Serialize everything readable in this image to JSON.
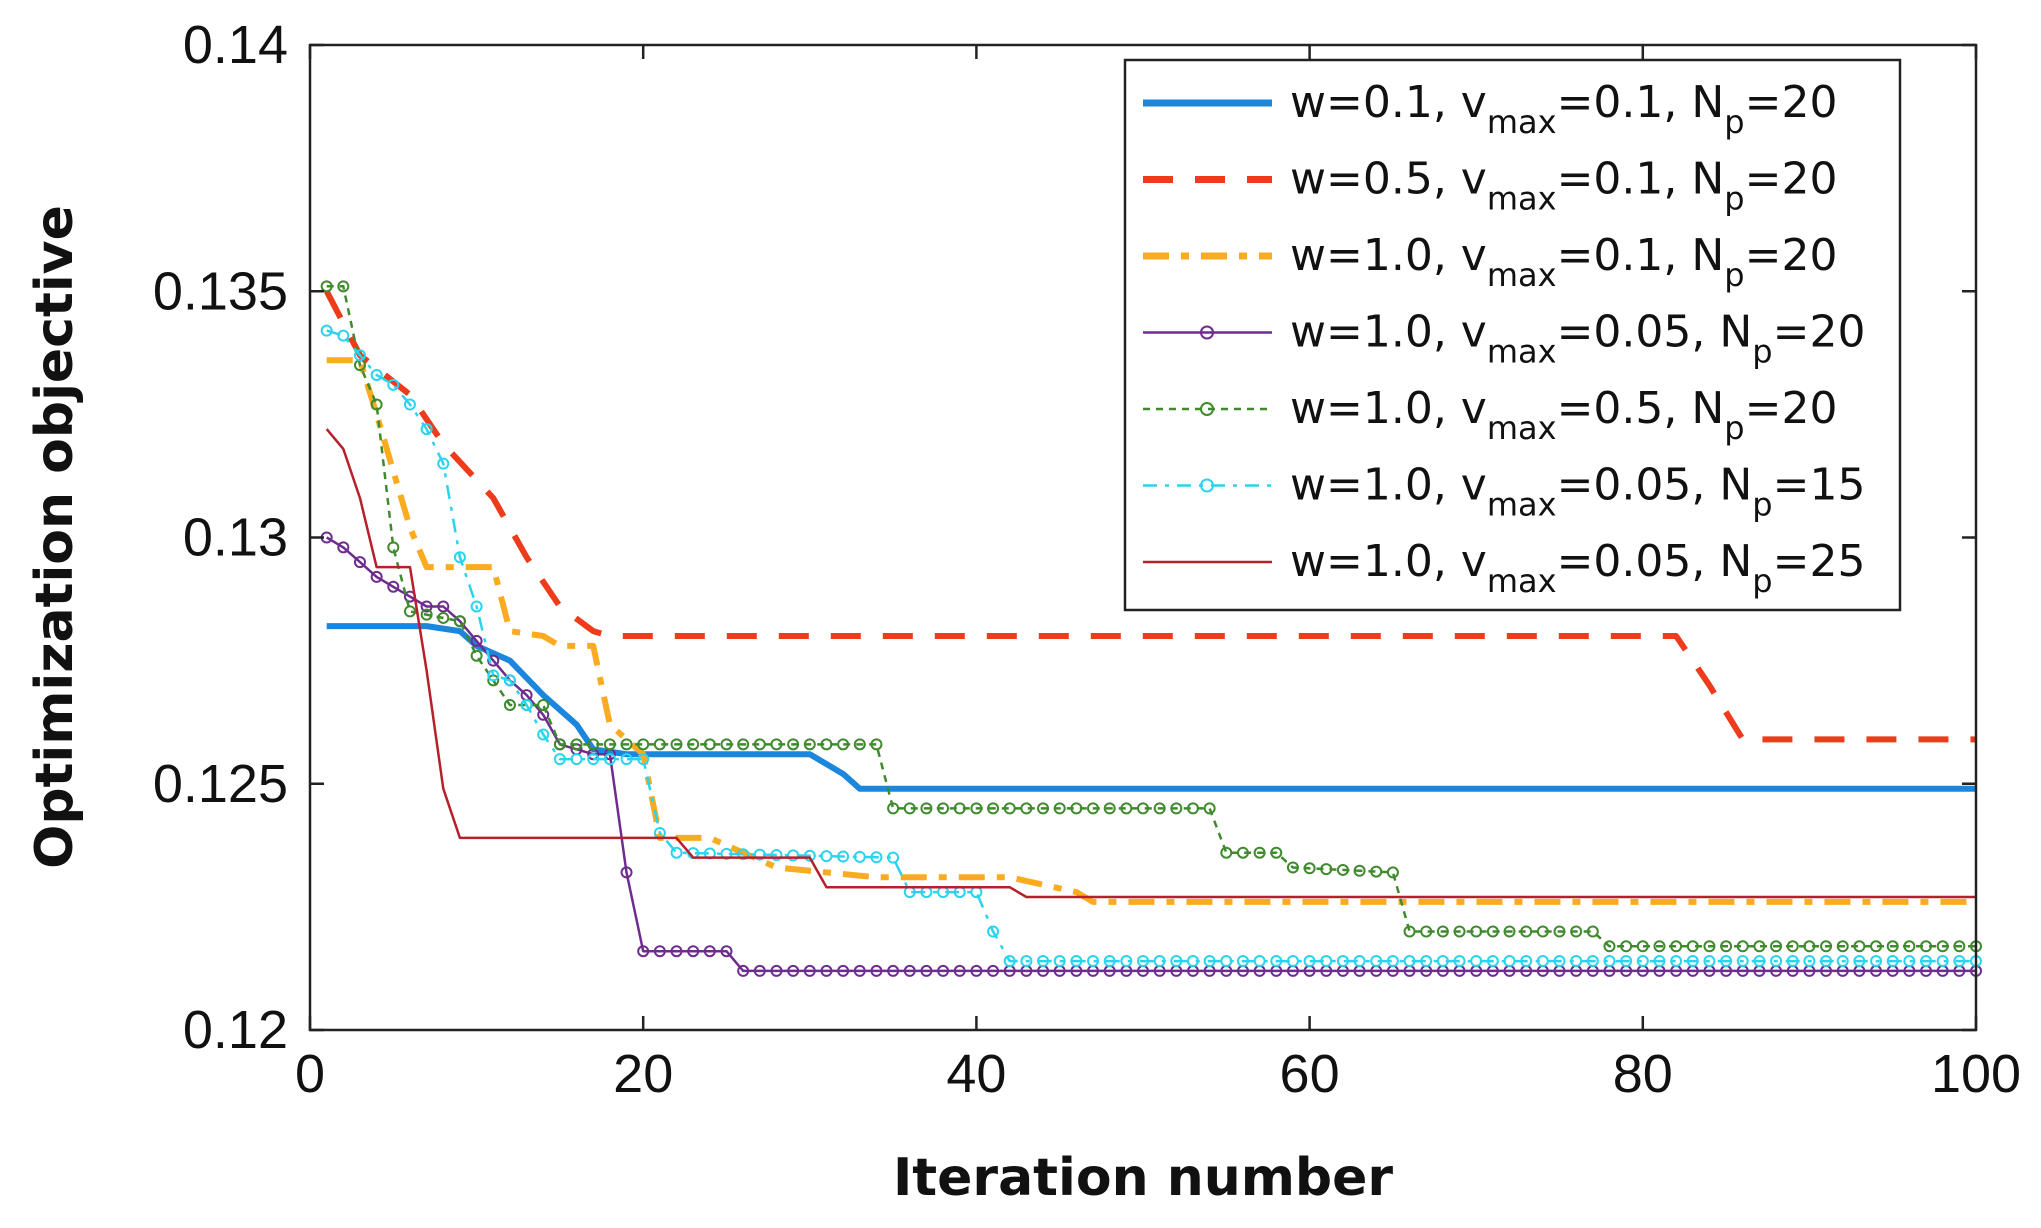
{
  "chart_data": {
    "type": "line",
    "title": "",
    "xlabel": "Iteration number",
    "ylabel": "Optimization objective",
    "xlim": [
      0,
      100
    ],
    "ylim": [
      0.12,
      0.14
    ],
    "xticks": [
      0,
      20,
      40,
      60,
      80,
      100
    ],
    "xtick_labels": [
      "0",
      "20",
      "40",
      "60",
      "80",
      "100"
    ],
    "yticks": [
      0.12,
      0.125,
      0.13,
      0.135,
      0.14
    ],
    "ytick_labels": [
      "0.12",
      "0.125",
      "0.13",
      "0.135",
      "0.14"
    ],
    "grid": false,
    "legend_position": "top-right",
    "series": [
      {
        "name": "w=0.1, v_max=0.1, N_p=20",
        "legend": {
          "pre": "w=0.1, v",
          "sub1": "max",
          "mid": "=0.1, N",
          "sub2": "p",
          "post": "=20"
        },
        "color": "#1a86dc",
        "style": "solid",
        "marker": "none",
        "width": "thick",
        "x": [
          1,
          7,
          9,
          10,
          12,
          14,
          16,
          17,
          19,
          20,
          30,
          32,
          33,
          100
        ],
        "y": [
          0.1282,
          0.1282,
          0.1281,
          0.1278,
          0.1275,
          0.1268,
          0.1262,
          0.1257,
          0.1256,
          0.1256,
          0.1256,
          0.1252,
          0.1249,
          0.1249
        ]
      },
      {
        "name": "w=0.5, v_max=0.1, N_p=20",
        "legend": {
          "pre": "w=0.5, v",
          "sub1": "max",
          "mid": "=0.1, N",
          "sub2": "p",
          "post": "=20"
        },
        "color": "#ee3b1b",
        "style": "dashed",
        "marker": "none",
        "width": "thick",
        "x": [
          1,
          3,
          6,
          8,
          11,
          13,
          15,
          17,
          18,
          82,
          84,
          86,
          100
        ],
        "y": [
          0.135,
          0.1337,
          0.1329,
          0.1319,
          0.1308,
          0.1296,
          0.1286,
          0.1281,
          0.128,
          0.128,
          0.127,
          0.1259,
          0.1259
        ]
      },
      {
        "name": "w=1.0, v_max=0.1, N_p=20",
        "legend": {
          "pre": "w=1.0, v",
          "sub1": "max",
          "mid": "=0.1, N",
          "sub2": "p",
          "post": "=20"
        },
        "color": "#fbab1f",
        "style": "dashdot",
        "marker": "none",
        "width": "thick",
        "x": [
          1,
          3,
          4,
          6,
          7,
          11,
          12,
          14,
          15,
          17,
          18,
          20,
          21,
          24,
          28,
          34,
          42,
          46,
          47,
          100
        ],
        "y": [
          0.1336,
          0.1336,
          0.1325,
          0.1302,
          0.1294,
          0.1294,
          0.1281,
          0.128,
          0.1278,
          0.1278,
          0.1262,
          0.1256,
          0.1239,
          0.1239,
          0.1233,
          0.1231,
          0.1231,
          0.1228,
          0.1226,
          0.1226
        ]
      },
      {
        "name": "w=1.0, v_max=0.05, N_p=20",
        "legend": {
          "pre": "w=1.0, v",
          "sub1": "max",
          "mid": "=0.05, N",
          "sub2": "p",
          "post": "=20"
        },
        "color": "#6f2c8f",
        "style": "solid",
        "marker": "circle",
        "width": "thin",
        "x": [
          1,
          2,
          3,
          4,
          5,
          6,
          7,
          8,
          9,
          10,
          11,
          12,
          13,
          14,
          15,
          16,
          17,
          18,
          19,
          20,
          21,
          22,
          23,
          24,
          25,
          26,
          100
        ],
        "y": [
          0.13,
          0.1298,
          0.1295,
          0.1292,
          0.129,
          0.1288,
          0.1286,
          0.1286,
          0.1283,
          0.1279,
          0.1275,
          0.1271,
          0.1268,
          0.1264,
          0.1258,
          0.1257,
          0.1256,
          0.1256,
          0.1232,
          0.1216,
          0.1216,
          0.1216,
          0.1216,
          0.1216,
          0.1216,
          0.1212,
          0.1212
        ]
      },
      {
        "name": "w=1.0, v_max=0.5, N_p=20",
        "legend": {
          "pre": "w=1.0, v",
          "sub1": "max",
          "mid": "=0.5, N",
          "sub2": "p",
          "post": "=20"
        },
        "color": "#3f8a2d",
        "style": "dotted",
        "marker": "circle",
        "width": "thin",
        "x": [
          1,
          2,
          3,
          4,
          5,
          6,
          9,
          10,
          12,
          14,
          15,
          34,
          35,
          54,
          55,
          58,
          59,
          65,
          66,
          77,
          78,
          100
        ],
        "y": [
          0.1351,
          0.1351,
          0.1335,
          0.1327,
          0.1298,
          0.1285,
          0.1283,
          0.1276,
          0.1266,
          0.1266,
          0.1258,
          0.1258,
          0.1245,
          0.1245,
          0.1236,
          0.1236,
          0.1233,
          0.1232,
          0.122,
          0.122,
          0.1217,
          0.1217
        ]
      },
      {
        "name": "w=1.0, v_max=0.05, N_p=15",
        "legend": {
          "pre": "w=1.0, v",
          "sub1": "max",
          "mid": "=0.05, N",
          "sub2": "p",
          "post": "=15"
        },
        "color": "#2ad4ee",
        "style": "dashdot",
        "marker": "circle",
        "width": "thin",
        "x": [
          1,
          2,
          3,
          4,
          5,
          6,
          7,
          8,
          9,
          10,
          11,
          12,
          13,
          14,
          15,
          17,
          19,
          20,
          21,
          22,
          35,
          36,
          39,
          40,
          41,
          42,
          100
        ],
        "y": [
          0.1342,
          0.1341,
          0.1337,
          0.1333,
          0.1331,
          0.1327,
          0.1322,
          0.1315,
          0.1296,
          0.1286,
          0.1272,
          0.1271,
          0.1266,
          0.126,
          0.1255,
          0.1255,
          0.1255,
          0.1255,
          0.124,
          0.1236,
          0.1235,
          0.1228,
          0.1228,
          0.1228,
          0.122,
          0.1214,
          0.1214
        ]
      },
      {
        "name": "w=1.0, v_max=0.05, N_p=25",
        "legend": {
          "pre": "w=1.0, v",
          "sub1": "max",
          "mid": "=0.05, N",
          "sub2": "p",
          "post": "=25"
        },
        "color": "#b5202a",
        "style": "solid",
        "marker": "none",
        "width": "thin",
        "x": [
          1,
          2,
          3,
          4,
          5,
          6,
          7,
          8,
          9,
          22,
          23,
          30,
          31,
          42,
          43,
          100
        ],
        "y": [
          0.1322,
          0.1318,
          0.1308,
          0.1294,
          0.1294,
          0.1294,
          0.1273,
          0.1249,
          0.1239,
          0.1239,
          0.1235,
          0.1235,
          0.1229,
          0.1229,
          0.1227,
          0.1227
        ]
      }
    ]
  }
}
